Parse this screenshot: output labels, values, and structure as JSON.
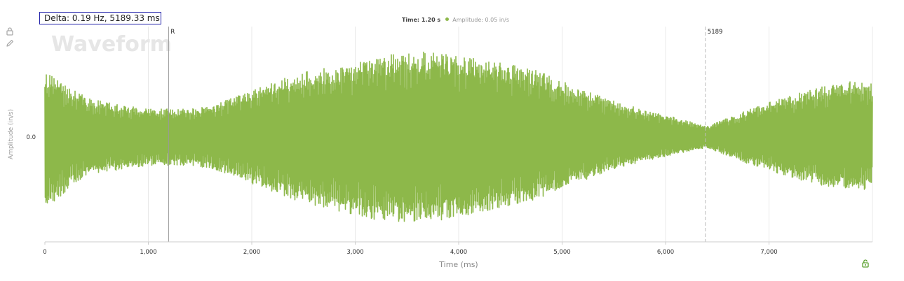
{
  "delta_label": "Delta: 0.19 Hz, 5189.33 ms",
  "legend": {
    "time_text": "Time: 1.20 s",
    "amplitude_text": "Amplitude: 0.05 in/s",
    "dot_color": "#8db84a"
  },
  "icons": {
    "lock": "lock-icon",
    "pencil": "pencil-icon",
    "corner": "unlock-icon"
  },
  "colors": {
    "series": "#8db84a",
    "watermark": "#e6e6e6",
    "grid": "#e8e8e8",
    "cursor": "#999999",
    "accent": "#5aa02c"
  },
  "chart_data": {
    "type": "line",
    "title": "Waveform",
    "xlabel": "Time (ms)",
    "ylabel": "Amplitude (in/s)",
    "xlim": [
      0,
      8000
    ],
    "ylim": [
      -1,
      1
    ],
    "x_ticks": [
      0,
      1000,
      2000,
      3000,
      4000,
      5000,
      6000,
      7000
    ],
    "x_tick_labels": [
      "0",
      "1,000",
      "2,000",
      "3,000",
      "4,000",
      "5,000",
      "6,000",
      "7,000"
    ],
    "y_ticks": [
      0
    ],
    "y_tick_labels": [
      "0.0"
    ],
    "grid": "vertical",
    "markers": [
      {
        "label": "R",
        "x": 1196,
        "style": "solid"
      },
      {
        "label": "5189",
        "x": 6385,
        "style": "dashed"
      }
    ],
    "envelope": {
      "x": [
        0,
        200,
        400,
        600,
        800,
        1000,
        1200,
        1400,
        1600,
        1800,
        2000,
        2200,
        2400,
        2600,
        2800,
        3000,
        3200,
        3400,
        3600,
        3800,
        4000,
        4200,
        4400,
        4600,
        4800,
        5000,
        5200,
        5400,
        5600,
        5800,
        6000,
        6200,
        6400,
        6600,
        6800,
        7000,
        7200,
        7400,
        7600,
        7800,
        8000
      ],
      "upper": [
        0.62,
        0.5,
        0.38,
        0.33,
        0.3,
        0.27,
        0.27,
        0.27,
        0.29,
        0.37,
        0.45,
        0.52,
        0.59,
        0.64,
        0.67,
        0.7,
        0.75,
        0.8,
        0.82,
        0.8,
        0.77,
        0.74,
        0.71,
        0.68,
        0.62,
        0.53,
        0.45,
        0.38,
        0.32,
        0.26,
        0.21,
        0.16,
        0.1,
        0.18,
        0.26,
        0.33,
        0.39,
        0.45,
        0.5,
        0.53,
        0.52
      ],
      "lower": [
        -0.72,
        -0.52,
        -0.36,
        -0.33,
        -0.3,
        -0.27,
        -0.27,
        -0.27,
        -0.3,
        -0.37,
        -0.45,
        -0.52,
        -0.6,
        -0.66,
        -0.7,
        -0.75,
        -0.79,
        -0.82,
        -0.82,
        -0.8,
        -0.76,
        -0.72,
        -0.68,
        -0.64,
        -0.58,
        -0.5,
        -0.42,
        -0.34,
        -0.28,
        -0.23,
        -0.19,
        -0.14,
        -0.1,
        -0.18,
        -0.26,
        -0.32,
        -0.38,
        -0.44,
        -0.48,
        -0.5,
        -0.5
      ]
    }
  }
}
